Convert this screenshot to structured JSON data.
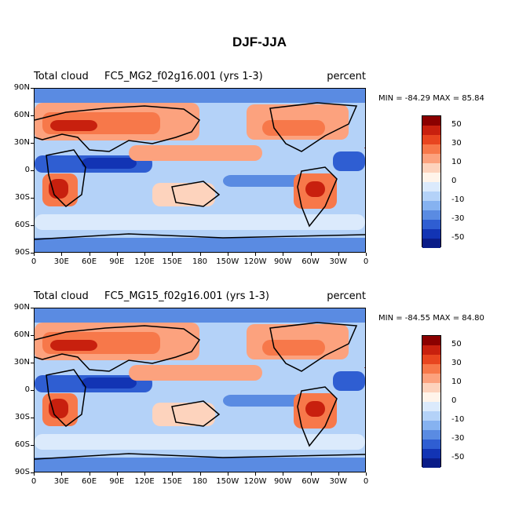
{
  "figure_title": "DJF-JJA",
  "panels": [
    {
      "variable": "Total cloud",
      "case": "FC5_MG2_f02g16.001 (yrs 1-3)",
      "units": "percent",
      "minmax": "MIN = -84.29 MAX =  85.84"
    },
    {
      "variable": "Total cloud",
      "case": "FC5_MG15_f02g16.001 (yrs 1-3)",
      "units": "percent",
      "minmax": "MIN = -84.55 MAX =  84.80"
    }
  ],
  "lat_labels": [
    "90N",
    "60N",
    "30N",
    "0",
    "30S",
    "60S",
    "90S"
  ],
  "lon_labels": [
    "0",
    "30E",
    "60E",
    "90E",
    "120E",
    "150E",
    "180",
    "150W",
    "120W",
    "90W",
    "60W",
    "30W",
    "0"
  ],
  "colorbar_labels": [
    "50",
    "30",
    "10",
    "0",
    "-10",
    "-30",
    "-50"
  ],
  "colorbar_colors": [
    "#8b0000",
    "#c8200e",
    "#e8451f",
    "#f7784a",
    "#fca27e",
    "#fdd3bd",
    "#fff4ea",
    "#dbeafc",
    "#b4d2f8",
    "#86b2f0",
    "#5a8be2",
    "#2f5ed2",
    "#1234b4",
    "#0a1c88"
  ],
  "colors": {
    "land_outline": "#000000",
    "background": "#ffffff"
  }
}
